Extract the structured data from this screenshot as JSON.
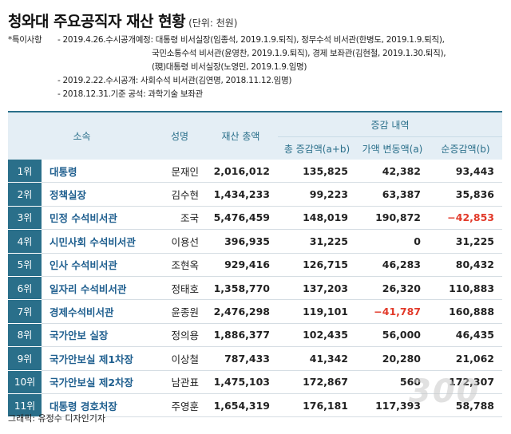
{
  "title": "청와대 주요공직자 재산 현황",
  "unit": "(단위: 천원)",
  "notes": {
    "label": "*특이사항",
    "lines": [
      "- 2019.4.26.수시공개예정: 대통령 비서실장(임종석, 2019.1.9.퇴직), 정무수석 비서관(한병도, 2019.1.9.퇴직),",
      "국민소통수석 비서관(윤영찬, 2019.1.9.퇴직), 경제 보좌관(김현철, 2019.1.30.퇴직),",
      "(現)대통령 비서실장(노영민, 2019.1.9.임명)",
      "- 2019.2.22.수시공개: 사회수석 비서관(김연명, 2018.11.12.임명)",
      "- 2018.12.31.기준 공석: 과학기술 보좌관"
    ]
  },
  "headers": {
    "org": "소속",
    "name": "성명",
    "total": "재산 총액",
    "change_group": "증감 내역",
    "change_total": "총 증감액(a+b)",
    "change_price": "가액 변동액(a)",
    "change_net": "순증감액(b)"
  },
  "rows": [
    {
      "rank": "1위",
      "org": "대통령",
      "name": "문재인",
      "total": "2,016,012",
      "change_total": "135,825",
      "change_price": "42,382",
      "change_net": "93,443"
    },
    {
      "rank": "2위",
      "org": "정책실장",
      "name": "김수현",
      "total": "1,434,233",
      "change_total": "99,223",
      "change_price": "63,387",
      "change_net": "35,836"
    },
    {
      "rank": "3위",
      "org": "민정 수석비서관",
      "name": "조국",
      "total": "5,476,459",
      "change_total": "148,019",
      "change_price": "190,872",
      "change_net": "−42,853"
    },
    {
      "rank": "4위",
      "org": "시민사회 수석비서관",
      "name": "이용선",
      "total": "396,935",
      "change_total": "31,225",
      "change_price": "0",
      "change_net": "31,225"
    },
    {
      "rank": "5위",
      "org": "인사 수석비서관",
      "name": "조현옥",
      "total": "929,416",
      "change_total": "126,715",
      "change_price": "46,283",
      "change_net": "80,432"
    },
    {
      "rank": "6위",
      "org": "일자리 수석비서관",
      "name": "정태호",
      "total": "1,358,770",
      "change_total": "137,203",
      "change_price": "26,320",
      "change_net": "110,883"
    },
    {
      "rank": "7위",
      "org": "경제수석비서관",
      "name": "윤종원",
      "total": "2,476,298",
      "change_total": "119,101",
      "change_price": "−41,787",
      "change_net": "160,888"
    },
    {
      "rank": "8위",
      "org": "국가안보 실장",
      "name": "정의용",
      "total": "1,886,377",
      "change_total": "102,435",
      "change_price": "56,000",
      "change_net": "46,435"
    },
    {
      "rank": "9위",
      "org": "국가안보실 제1차장",
      "name": "이상철",
      "total": "787,433",
      "change_total": "41,342",
      "change_price": "20,280",
      "change_net": "21,062"
    },
    {
      "rank": "10위",
      "org": "국가안보실 제2차장",
      "name": "남관표",
      "total": "1,475,103",
      "change_total": "172,867",
      "change_price": "560",
      "change_net": "172,307"
    },
    {
      "rank": "11위",
      "org": "대통령 경호처장",
      "name": "주영훈",
      "total": "1,654,319",
      "change_total": "176,181",
      "change_price": "117,393",
      "change_net": "58,788"
    }
  ],
  "negative_color": "#e23a2a",
  "accent_color": "#2a6f8a",
  "footer": "그래픽: 유정수 디자인기자",
  "watermark": "300"
}
